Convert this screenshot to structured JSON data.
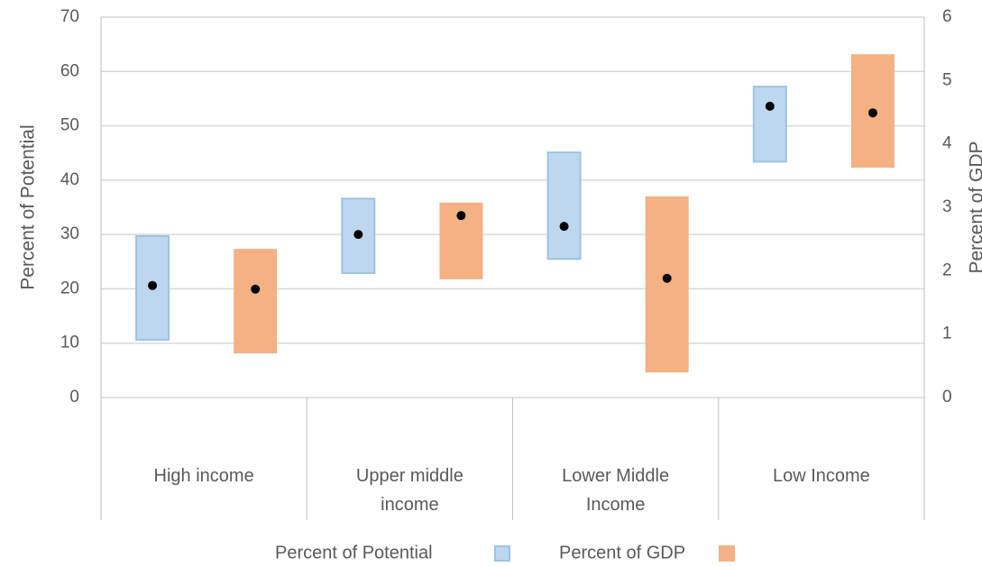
{
  "chart_data": {
    "type": "range",
    "ylabel": "Percent of Potential",
    "y2label": "Percent of GDP",
    "categories": [
      "High income",
      "Upper middle income",
      "Lower Middle Income",
      "Low Income"
    ],
    "ylim": [
      0,
      70
    ],
    "yticks": [
      0,
      10,
      20,
      30,
      40,
      50,
      60,
      70
    ],
    "y2lim": [
      0,
      6
    ],
    "y2ticks": [
      0,
      1,
      2,
      3,
      4,
      5,
      6
    ],
    "grid": true,
    "series": [
      {
        "name": "Percent of Potential",
        "color": "#bdd7ee",
        "edge": "#9dc3e6",
        "axis": "y",
        "low": [
          10.6,
          22.9,
          25.5,
          43.4
        ],
        "high": [
          29.7,
          36.6,
          45.1,
          57.2
        ],
        "mid": [
          20.6,
          30.0,
          31.5,
          53.6
        ]
      },
      {
        "name": "Percent of GDP",
        "color": "#f4b183",
        "edge": "#f4b183",
        "axis": "y2",
        "low": [
          0.71,
          1.88,
          0.41,
          3.64
        ],
        "high": [
          2.33,
          3.06,
          3.16,
          5.4
        ],
        "mid": [
          1.71,
          2.87,
          1.88,
          4.49
        ]
      }
    ]
  }
}
